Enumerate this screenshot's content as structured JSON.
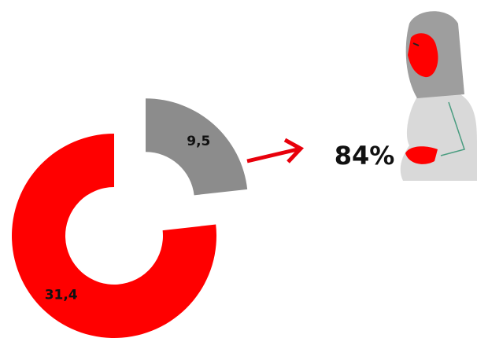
{
  "chart_data": {
    "type": "pie",
    "donut": true,
    "values": [
      31.4,
      9.5
    ],
    "value_labels": [
      "31,4",
      "9,5"
    ],
    "colors": [
      "#ff0000",
      "#8c8c8c"
    ],
    "annotation": "84%"
  }
}
